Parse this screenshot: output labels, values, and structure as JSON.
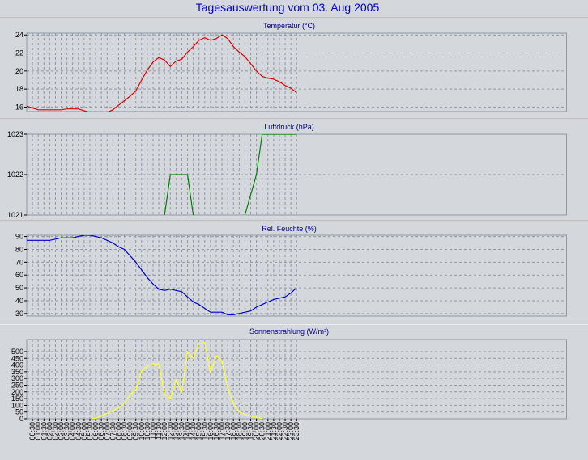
{
  "title": "Tagesauswertung vom 03. Aug 2005",
  "colors": {
    "background": "#d4d8dc",
    "plot_background": "#d4d8dc",
    "grid": "#8f97a8",
    "title": "#0000cc",
    "panel_title": "#000080"
  },
  "chart_data": [
    {
      "type": "line",
      "title": "Temperatur (°C)",
      "color": "#e00000",
      "ylim": [
        15.5,
        24.2
      ],
      "yticks": [
        16,
        18,
        20,
        22,
        24
      ],
      "ytick_labels": [
        "16",
        "18",
        "20",
        "22",
        "24"
      ],
      "x": [
        0,
        0.5,
        1,
        1.5,
        2,
        2.5,
        3,
        3.5,
        4,
        4.5,
        5,
        5.5,
        6,
        6.5,
        7,
        7.5,
        8,
        8.5,
        9,
        9.5,
        10,
        10.5,
        11,
        11.5,
        12,
        12.5,
        13,
        13.5,
        14,
        14.5,
        15,
        15.5,
        16,
        16.5,
        17,
        17.5,
        18,
        18.5,
        19,
        19.5,
        20,
        20.5,
        21,
        21.5,
        22,
        22.5,
        23,
        23.5
      ],
      "values": [
        16.1,
        15.9,
        15.7,
        15.7,
        15.7,
        15.7,
        15.7,
        15.8,
        15.8,
        15.8,
        15.6,
        15.4,
        15.4,
        15.4,
        15.4,
        15.7,
        16.2,
        16.7,
        17.2,
        17.8,
        19.0,
        20.1,
        21.0,
        21.5,
        21.2,
        20.5,
        21.1,
        21.3,
        22.1,
        22.7,
        23.4,
        23.7,
        23.4,
        23.6,
        24.0,
        23.6,
        22.7,
        22.1,
        21.6,
        20.8,
        20.0,
        19.4,
        19.2,
        19.1,
        18.8,
        18.4,
        18.1,
        17.6
      ],
      "grid": true
    },
    {
      "type": "line",
      "title": "Luftdruck (hPa)",
      "color": "#008000",
      "ylim": [
        1021,
        1023
      ],
      "yticks": [
        1021,
        1022,
        1023
      ],
      "ytick_labels": [
        "1021",
        "1022",
        "1023"
      ],
      "x": [
        0,
        11.4,
        12.0,
        12.5,
        14.0,
        14.5,
        15.0,
        18.5,
        19.0,
        20.0,
        20.5,
        23.5
      ],
      "values": [
        1020.8,
        1020.8,
        1021.0,
        1022.0,
        1022.0,
        1021.0,
        1020.8,
        1020.8,
        1021.0,
        1022.0,
        1023.0,
        1023.0
      ],
      "grid": true
    },
    {
      "type": "line",
      "title": "Rel. Feuchte (%)",
      "color": "#0000cc",
      "ylim": [
        28,
        91
      ],
      "yticks": [
        30,
        40,
        50,
        60,
        70,
        80,
        90
      ],
      "ytick_labels": [
        "30",
        "40",
        "50",
        "60",
        "70",
        "80",
        "90"
      ],
      "x": [
        0,
        0.5,
        1,
        1.5,
        2,
        2.5,
        3,
        3.5,
        4,
        4.5,
        5,
        5.5,
        6,
        6.5,
        7,
        7.5,
        8,
        8.5,
        9,
        9.5,
        10,
        10.5,
        11,
        11.5,
        12,
        12.5,
        13,
        13.5,
        14,
        14.5,
        15,
        15.5,
        16,
        16.5,
        17,
        17.5,
        18,
        18.5,
        19,
        19.5,
        20,
        20.5,
        21,
        21.5,
        22,
        22.5,
        23,
        23.5
      ],
      "values": [
        87,
        87,
        87,
        87,
        87,
        88,
        89,
        89,
        89,
        90,
        91,
        91,
        90,
        89,
        87,
        85,
        82,
        80,
        75,
        70,
        64,
        58,
        53,
        49,
        48,
        49,
        48,
        47,
        43,
        39,
        37,
        34,
        31,
        31,
        31,
        29,
        29,
        30,
        31,
        32,
        35,
        37,
        39,
        41,
        42,
        43,
        46,
        50
      ],
      "grid": true
    },
    {
      "type": "line",
      "title": "Sonnenstrahlung (W/m²)",
      "color": "#ffff33",
      "ylim": [
        0,
        590
      ],
      "yticks": [
        0,
        50,
        100,
        150,
        200,
        250,
        300,
        350,
        400,
        450,
        500
      ],
      "ytick_labels": [
        "0",
        "50",
        "100",
        "150",
        "200",
        "250",
        "300",
        "350",
        "400",
        "450",
        "500"
      ],
      "x": [
        5.7,
        6.0,
        6.5,
        7.0,
        7.5,
        8.0,
        8.5,
        9.0,
        9.5,
        10.0,
        10.5,
        11.0,
        11.5,
        12.0,
        12.5,
        13.0,
        13.5,
        14.0,
        14.5,
        15.0,
        15.5,
        16.0,
        16.5,
        17.0,
        17.5,
        18.0,
        18.5,
        19.0,
        19.5,
        20.0,
        20.5
      ],
      "values": [
        0,
        5,
        20,
        40,
        60,
        80,
        115,
        180,
        210,
        360,
        390,
        410,
        410,
        180,
        150,
        290,
        200,
        500,
        450,
        560,
        570,
        340,
        470,
        430,
        230,
        110,
        50,
        30,
        20,
        10,
        0
      ],
      "grid": true
    }
  ],
  "x_axis": {
    "tick_labels": [
      "00:30",
      "01:00",
      "01:30",
      "02:00",
      "02:30",
      "03:00",
      "03:30",
      "04:00",
      "04:30",
      "05:00",
      "05:30",
      "06:00",
      "06:30",
      "07:00",
      "07:30",
      "08:00",
      "08:30",
      "09:00",
      "09:30",
      "10:00",
      "10:30",
      "11:00",
      "11:30",
      "12:00",
      "12:30",
      "13:00",
      "13:30",
      "14:00",
      "14:30",
      "15:00",
      "15:30",
      "16:00",
      "16:30",
      "17:00",
      "17:30",
      "18:00",
      "18:30",
      "19:00",
      "19:30",
      "20:00",
      "20:30",
      "21:00",
      "21:30",
      "22:00",
      "22:30",
      "23:00",
      "23:30"
    ]
  }
}
